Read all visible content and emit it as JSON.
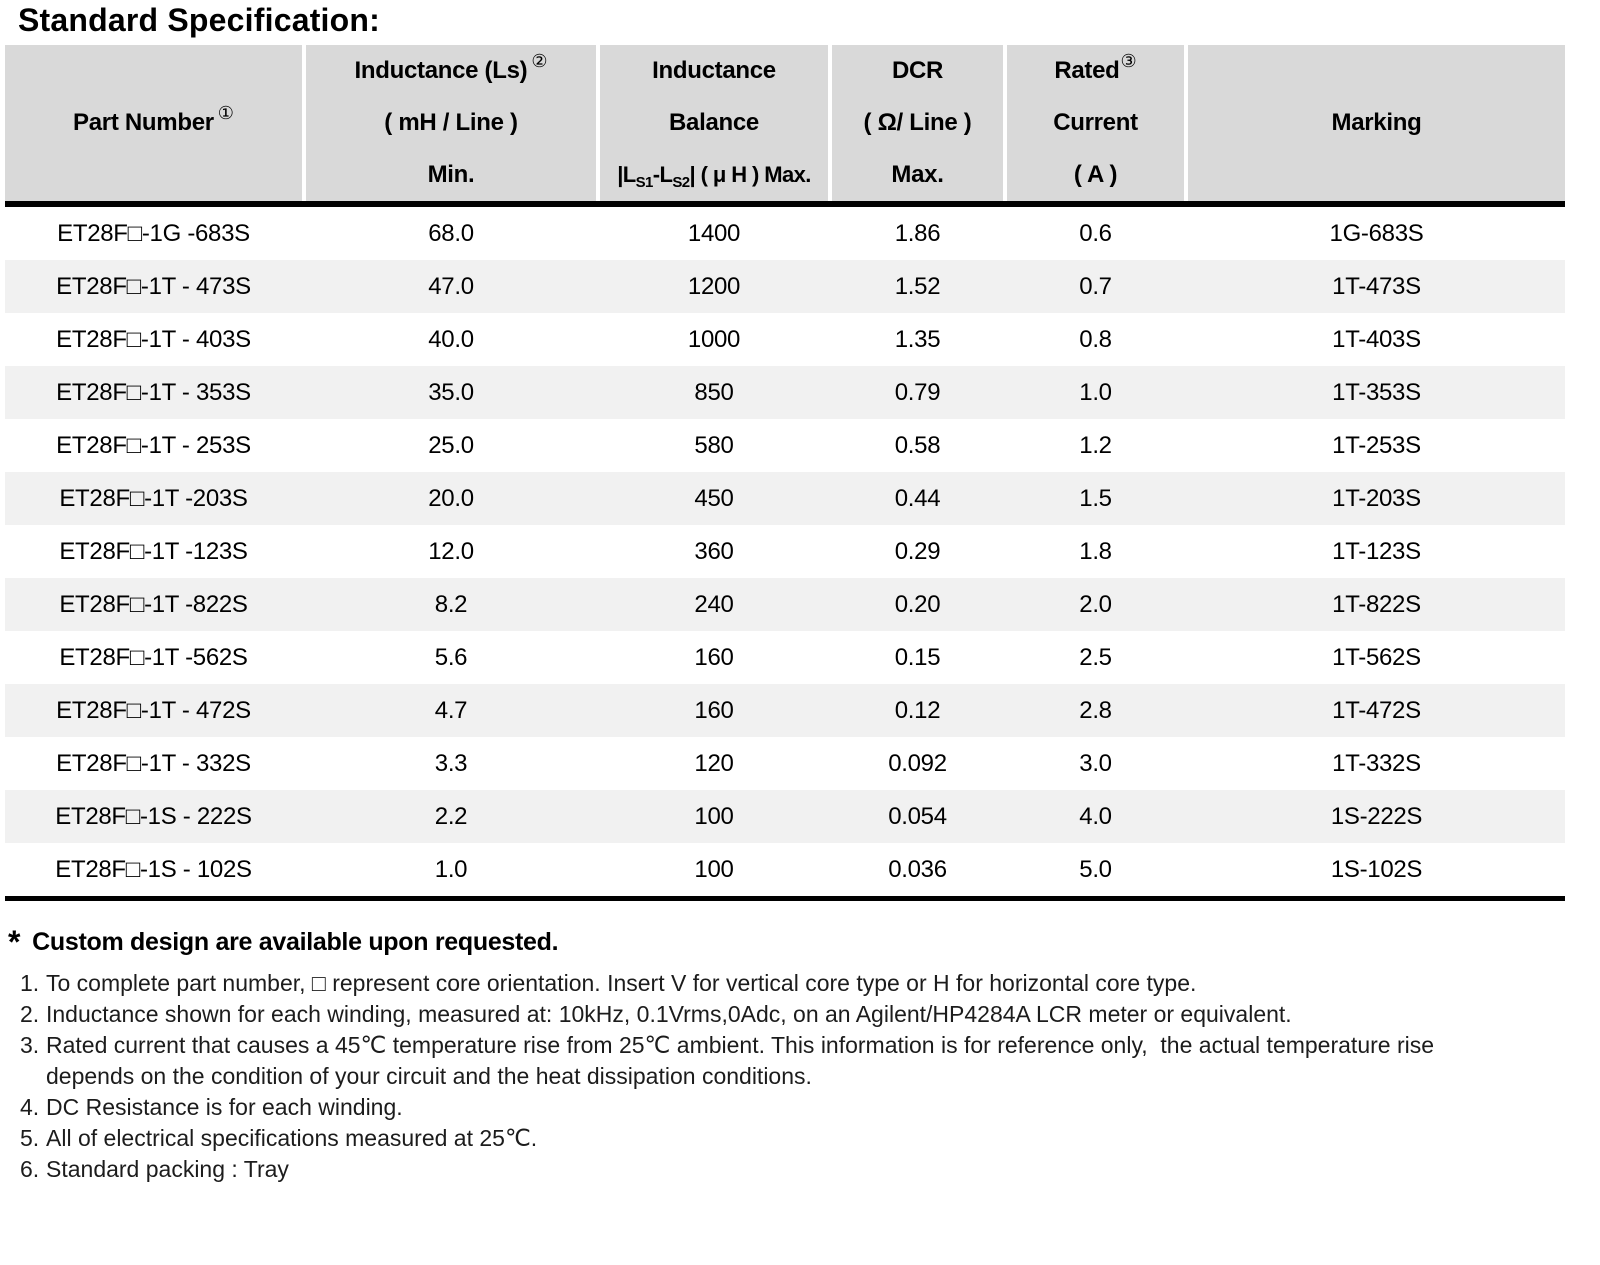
{
  "title": "Standard Specification:",
  "table": {
    "header": {
      "part_number": {
        "label": "Part Number",
        "footnote_ref": "①"
      },
      "inductance": {
        "line1": "Inductance (Ls)",
        "footnote_ref": "②",
        "line2": "( mH / Line )",
        "line3": "Min."
      },
      "balance": {
        "line1": "Inductance",
        "line2": "Balance",
        "line3_p1": "|L",
        "line3_sub1": "S1",
        "line3_p2": "-L",
        "line3_sub2": "S2",
        "line3_p3": "| ( μ H ) Max."
      },
      "dcr": {
        "line1": "DCR",
        "line2": "( Ω/ Line )",
        "line3": "Max."
      },
      "rated_current": {
        "line1": "Rated",
        "footnote_ref": "③",
        "line2": "Current",
        "line3": "( A )"
      },
      "marking": {
        "label": "Marking"
      }
    },
    "rows": [
      {
        "part_number": "ET28F□-1G -683S",
        "inductance_min": "68.0",
        "balance_max": "1400",
        "dcr_max": "1.86",
        "rated_current": "0.6",
        "marking": "1G-683S"
      },
      {
        "part_number": "ET28F□-1T - 473S",
        "inductance_min": "47.0",
        "balance_max": "1200",
        "dcr_max": "1.52",
        "rated_current": "0.7",
        "marking": "1T-473S"
      },
      {
        "part_number": "ET28F□-1T - 403S",
        "inductance_min": "40.0",
        "balance_max": "1000",
        "dcr_max": "1.35",
        "rated_current": "0.8",
        "marking": "1T-403S"
      },
      {
        "part_number": "ET28F□-1T - 353S",
        "inductance_min": "35.0",
        "balance_max": "850",
        "dcr_max": "0.79",
        "rated_current": "1.0",
        "marking": "1T-353S"
      },
      {
        "part_number": "ET28F□-1T - 253S",
        "inductance_min": "25.0",
        "balance_max": "580",
        "dcr_max": "0.58",
        "rated_current": "1.2",
        "marking": "1T-253S"
      },
      {
        "part_number": "ET28F□-1T -203S",
        "inductance_min": "20.0",
        "balance_max": "450",
        "dcr_max": "0.44",
        "rated_current": "1.5",
        "marking": "1T-203S"
      },
      {
        "part_number": "ET28F□-1T -123S",
        "inductance_min": "12.0",
        "balance_max": "360",
        "dcr_max": "0.29",
        "rated_current": "1.8",
        "marking": "1T-123S"
      },
      {
        "part_number": "ET28F□-1T -822S",
        "inductance_min": "8.2",
        "balance_max": "240",
        "dcr_max": "0.20",
        "rated_current": "2.0",
        "marking": "1T-822S"
      },
      {
        "part_number": "ET28F□-1T -562S",
        "inductance_min": "5.6",
        "balance_max": "160",
        "dcr_max": "0.15",
        "rated_current": "2.5",
        "marking": "1T-562S"
      },
      {
        "part_number": "ET28F□-1T - 472S",
        "inductance_min": "4.7",
        "balance_max": "160",
        "dcr_max": "0.12",
        "rated_current": "2.8",
        "marking": "1T-472S"
      },
      {
        "part_number": "ET28F□-1T - 332S",
        "inductance_min": "3.3",
        "balance_max": "120",
        "dcr_max": "0.092",
        "rated_current": "3.0",
        "marking": "1T-332S"
      },
      {
        "part_number": "ET28F□-1S - 222S",
        "inductance_min": "2.2",
        "balance_max": "100",
        "dcr_max": "0.054",
        "rated_current": "4.0",
        "marking": "1S-222S"
      },
      {
        "part_number": "ET28F□-1S - 102S",
        "inductance_min": "1.0",
        "balance_max": "100",
        "dcr_max": "0.036",
        "rated_current": "5.0",
        "marking": "1S-102S"
      }
    ]
  },
  "star_note": {
    "star": "*",
    "text": "Custom design are available upon requested."
  },
  "notes": [
    {
      "num": "1.",
      "text": "To complete part number, □ represent core orientation. Insert V for vertical core type or H for horizontal core type."
    },
    {
      "num": "2.",
      "text": "Inductance shown for each winding, measured at: 10kHz, 0.1Vrms,0Adc, on an Agilent/HP4284A LCR meter or equivalent."
    },
    {
      "num": "3.",
      "text": "Rated current that causes a 45℃ temperature rise from 25℃ ambient. This information is for reference only,  the actual temperature rise\ndepends on the condition of your circuit and the heat dissipation conditions."
    },
    {
      "num": "4.",
      "text": "DC Resistance is for each winding."
    },
    {
      "num": "5.",
      "text": "All of electrical specifications measured at 25℃."
    },
    {
      "num": "6.",
      "text": "Standard packing : Tray"
    }
  ],
  "colors": {
    "header_bg": "#d9d9d9",
    "row_alt_bg": "#f1f1f1",
    "row_bg": "#ffffff",
    "text": "#000000"
  }
}
